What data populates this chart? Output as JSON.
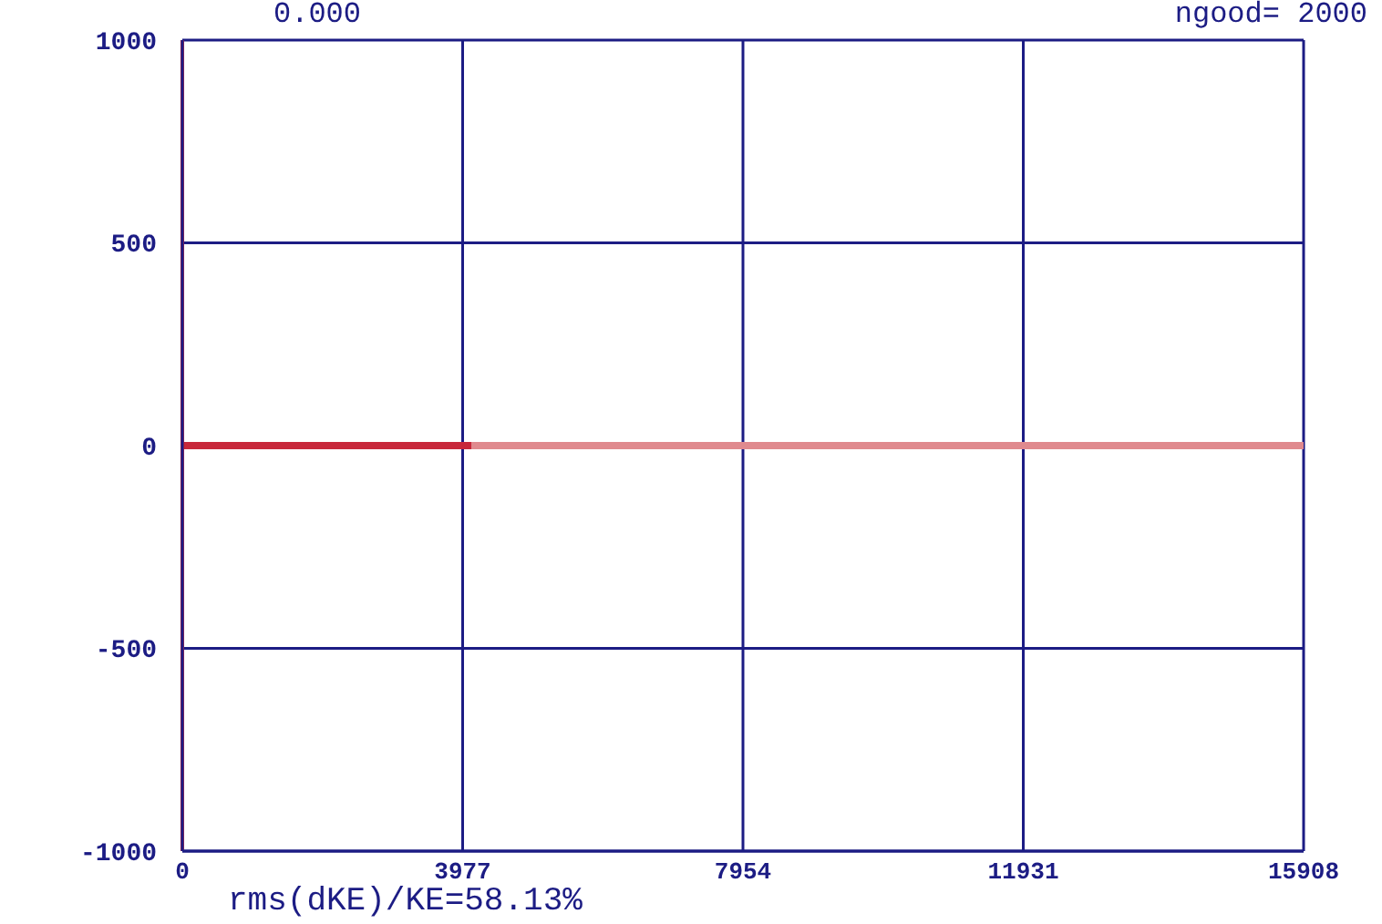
{
  "chart_data": {
    "type": "line",
    "annotations": [
      "0.000",
      "ngood= 2000",
      "rms(dKE)/KE=58.13%"
    ],
    "series": [
      {
        "color": "#e08a8e",
        "x": [
          0,
          15908
        ],
        "values": [
          0,
          0
        ]
      },
      {
        "color": "#c8283a",
        "x": [
          0,
          4100
        ],
        "values": [
          0,
          0
        ]
      }
    ],
    "xlim": [
      0,
      15908
    ],
    "xticks": [
      0,
      3977,
      7954,
      11931,
      15908
    ],
    "ylim": [
      -1000,
      1000
    ],
    "yticks": [
      -1000,
      -500,
      0,
      500,
      1000
    ],
    "grid": true,
    "marker": "none",
    "line_style": "solid",
    "ref_lines": [
      {
        "axis": "x",
        "value": 0,
        "color": "#c8283a"
      }
    ]
  }
}
